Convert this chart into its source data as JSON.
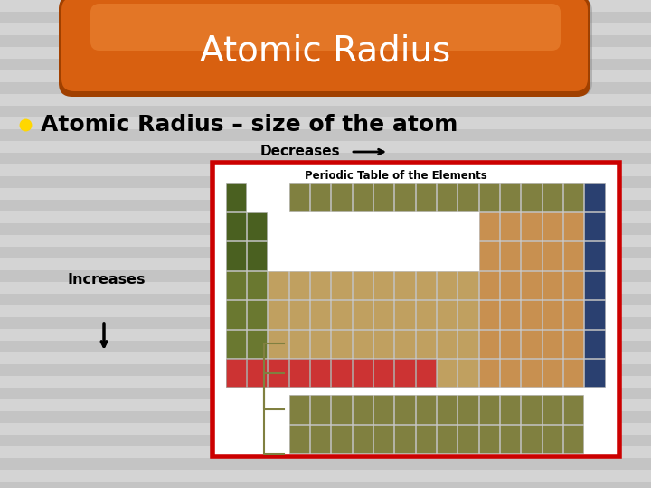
{
  "title": "Atomic Radius",
  "title_color": "#FFFFFF",
  "bg_color": "#CCCCCC",
  "stripe_light": "#D4D4D4",
  "stripe_dark": "#C4C4C4",
  "bullet_text": "Atomic Radius – size of the atom",
  "bullet_dot_color": "#FFD700",
  "decreases_label": "Decreases",
  "increases_label": "Increases",
  "label_color": "#000000",
  "pill_orange_main": "#D86010",
  "pill_orange_light": "#E88030",
  "pill_orange_dark": "#A04000",
  "pill_shadow": "#888888",
  "pt_border_color": "#CC0000",
  "pt_bg": "#FFFFFF",
  "cell_green_dark": "#4A6020",
  "cell_green_mid": "#6A7830",
  "cell_tan": "#C0A060",
  "cell_orange_tan": "#C89050",
  "cell_blue_dark": "#2A4070",
  "cell_white": "#FFFFFF",
  "cell_lanthanide": "#808040",
  "cell_actinide": "#808040",
  "cell_row7_red": "#CC3333"
}
